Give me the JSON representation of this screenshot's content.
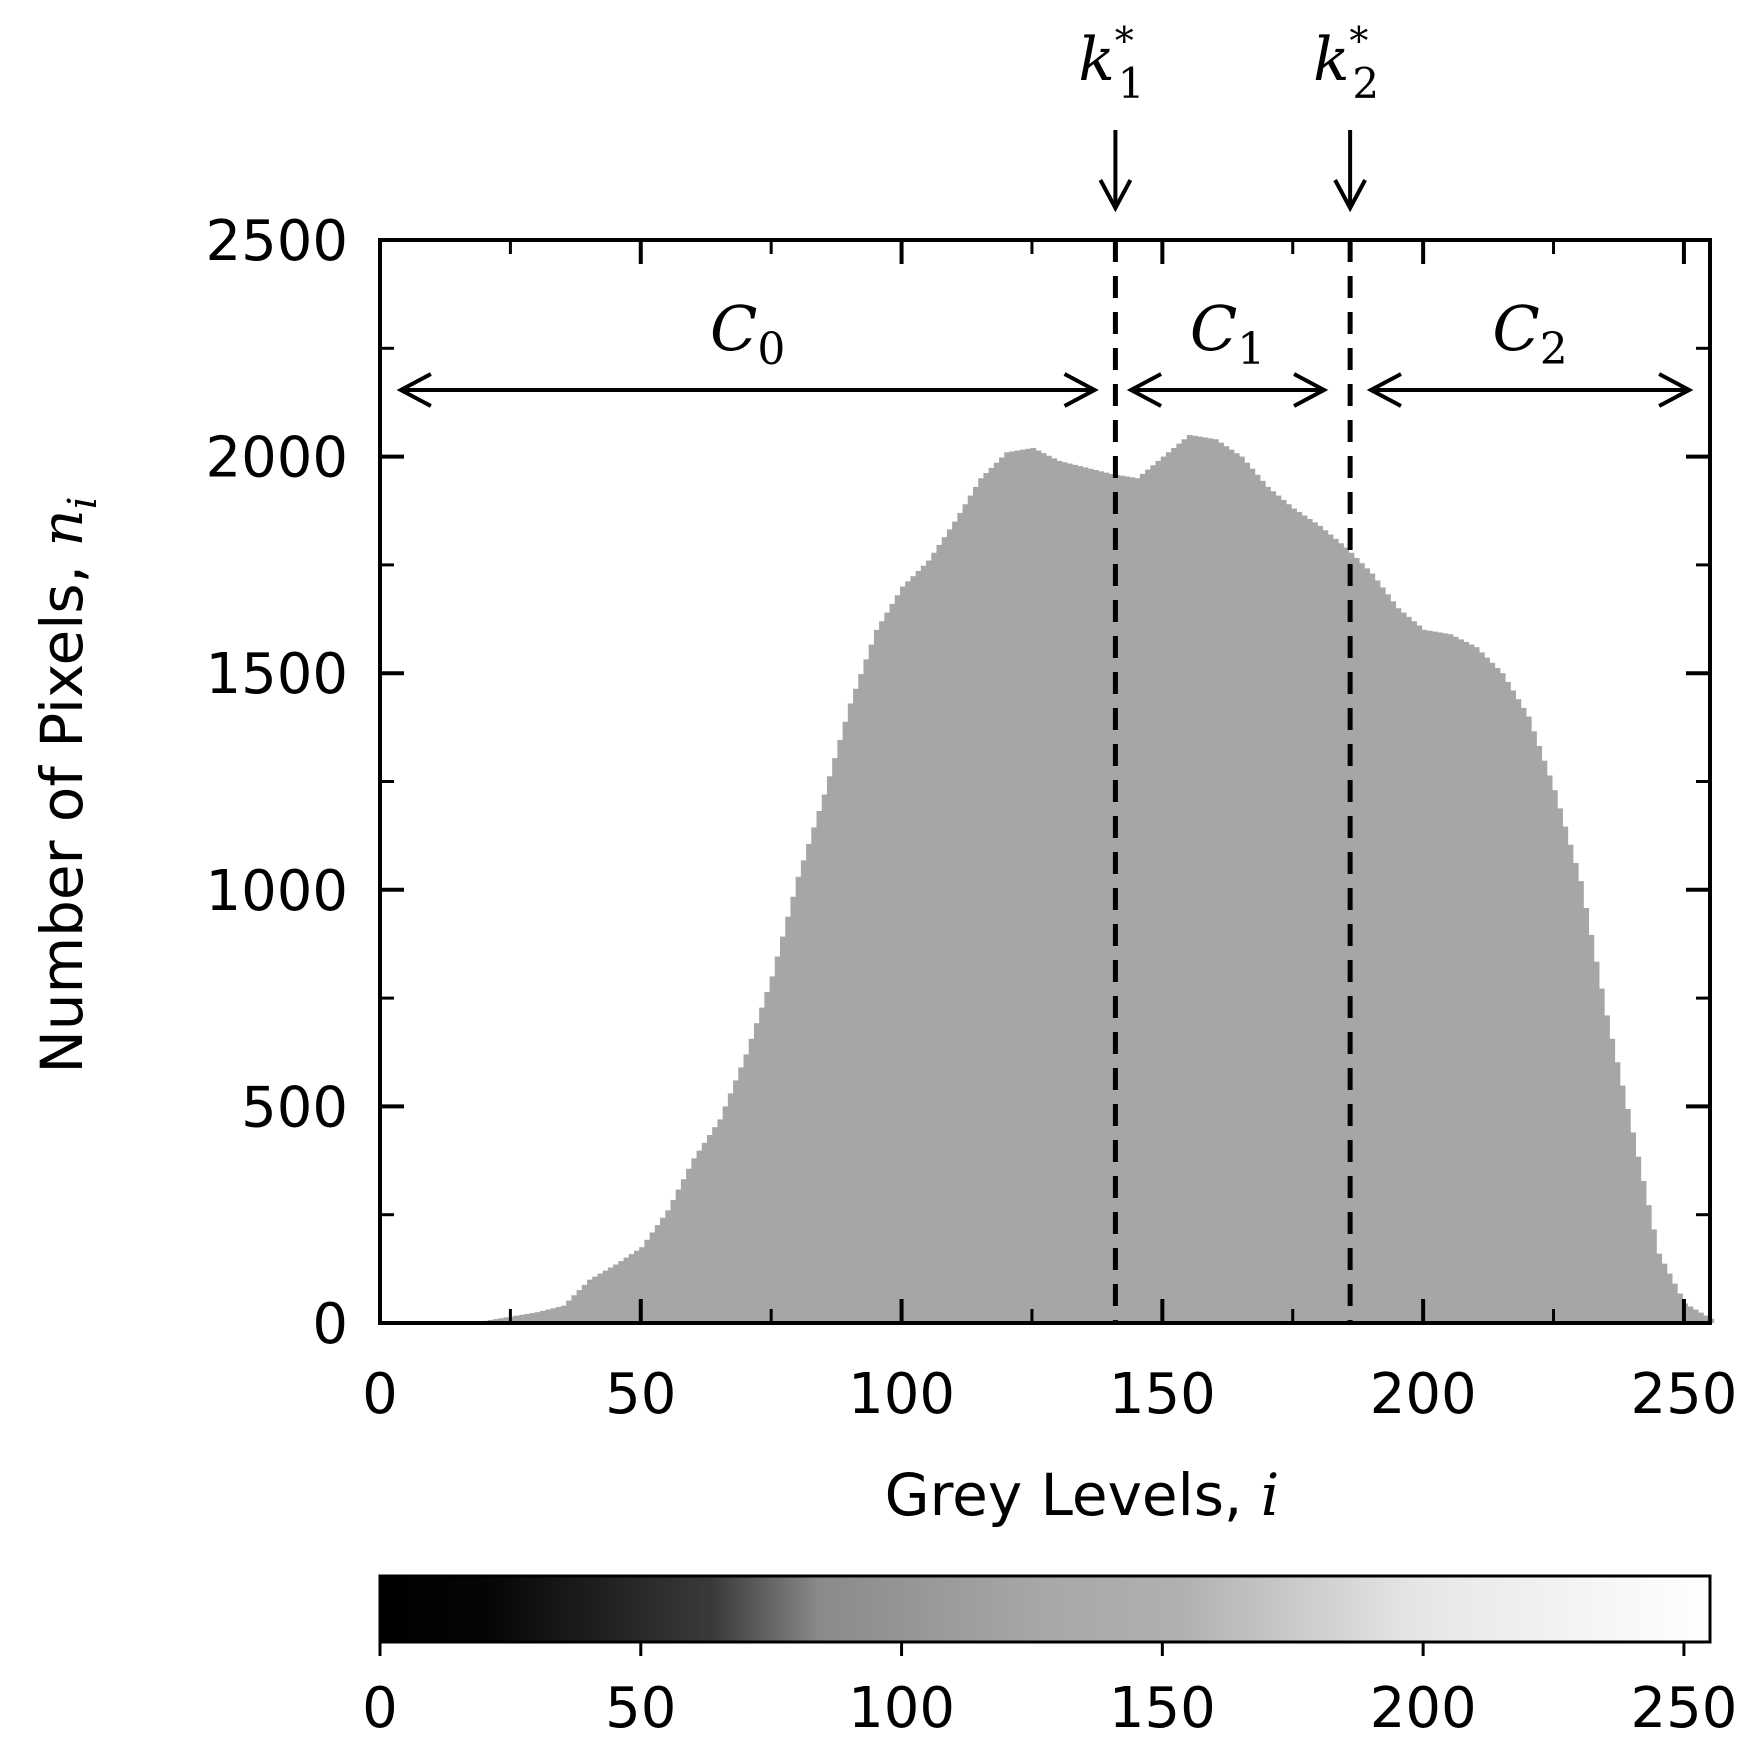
{
  "chart_data": {
    "type": "bar",
    "xlabel": "Grey Levels, ",
    "xlabel_var": "i",
    "ylabel": "Number of Pixels, ",
    "ylabel_var": "n",
    "ylabel_var_sub": "i",
    "xlim": [
      0,
      255
    ],
    "ylim": [
      0,
      2500
    ],
    "x_ticks": [
      "0",
      "50",
      "100",
      "150",
      "200",
      "250"
    ],
    "y_ticks": [
      "0",
      "500",
      "1000",
      "1500",
      "2000",
      "2500"
    ],
    "colorbar_ticks": [
      "0",
      "50",
      "100",
      "150",
      "200",
      "250"
    ],
    "bar_color": "#a6a6a6",
    "histogram_anchor_points": [
      [
        0,
        0
      ],
      [
        10,
        0
      ],
      [
        20,
        5
      ],
      [
        25,
        15
      ],
      [
        30,
        25
      ],
      [
        35,
        40
      ],
      [
        40,
        100
      ],
      [
        45,
        135
      ],
      [
        50,
        175
      ],
      [
        55,
        260
      ],
      [
        60,
        380
      ],
      [
        65,
        470
      ],
      [
        70,
        620
      ],
      [
        75,
        800
      ],
      [
        80,
        1030
      ],
      [
        85,
        1220
      ],
      [
        90,
        1430
      ],
      [
        95,
        1600
      ],
      [
        100,
        1700
      ],
      [
        105,
        1760
      ],
      [
        110,
        1850
      ],
      [
        115,
        1950
      ],
      [
        120,
        2010
      ],
      [
        125,
        2020
      ],
      [
        130,
        1990
      ],
      [
        135,
        1975
      ],
      [
        140,
        1960
      ],
      [
        145,
        1950
      ],
      [
        150,
        2000
      ],
      [
        155,
        2050
      ],
      [
        160,
        2040
      ],
      [
        165,
        2000
      ],
      [
        170,
        1930
      ],
      [
        175,
        1880
      ],
      [
        180,
        1840
      ],
      [
        185,
        1790
      ],
      [
        190,
        1730
      ],
      [
        195,
        1650
      ],
      [
        200,
        1600
      ],
      [
        205,
        1590
      ],
      [
        210,
        1560
      ],
      [
        215,
        1500
      ],
      [
        220,
        1400
      ],
      [
        225,
        1230
      ],
      [
        230,
        1020
      ],
      [
        235,
        710
      ],
      [
        240,
        440
      ],
      [
        245,
        160
      ],
      [
        250,
        45
      ],
      [
        255,
        10
      ]
    ],
    "thresholds": [
      {
        "x": 141,
        "label_var": "k",
        "label_sub": "1",
        "label_sup": "*"
      },
      {
        "x": 186,
        "label_var": "k",
        "label_sub": "2",
        "label_sup": "*"
      }
    ],
    "classes": [
      {
        "var": "C",
        "sub": "0",
        "from": 4,
        "to": 137
      },
      {
        "var": "C",
        "sub": "1",
        "from": 144,
        "to": 181
      },
      {
        "var": "C",
        "sub": "2",
        "from": 190,
        "to": 251
      }
    ]
  }
}
